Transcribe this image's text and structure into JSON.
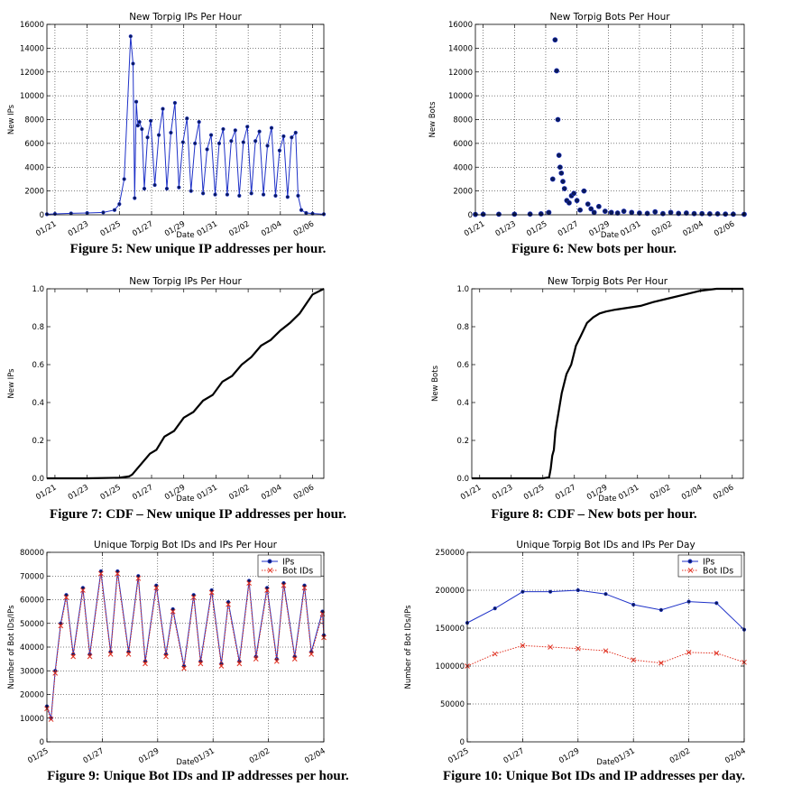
{
  "charts": [
    {
      "title": "New Torpig IPs Per Hour",
      "caption": "Figure 5: New unique IP addresses per hour.",
      "xlabel": "Date",
      "ylabel": "New IPs"
    },
    {
      "title": "New Torpig Bots Per Hour",
      "caption": "Figure 6: New bots per hour.",
      "xlabel": "Date",
      "ylabel": "New Bots"
    },
    {
      "title": "New Torpig IPs Per Hour",
      "caption": "Figure 7: CDF – New unique IP addresses per hour.",
      "xlabel": "Date",
      "ylabel": "New IPs"
    },
    {
      "title": "New Torpig Bots Per Hour",
      "caption": "Figure 8: CDF – New bots per hour.",
      "xlabel": "Date",
      "ylabel": "New Bots"
    },
    {
      "title": "Unique Torpig Bot IDs and IPs Per Hour",
      "caption": "Figure 9: Unique Bot IDs and IP addresses per hour.",
      "xlabel": "Date",
      "ylabel": "Number of Bot IDs/IPs"
    },
    {
      "title": "Unique Torpig Bot IDs and IPs Per Day",
      "caption": "Figure 10: Unique Bot IDs and IP addresses per day.",
      "xlabel": "Date",
      "ylabel": "Number of Bot IDs/IPs"
    }
  ],
  "chart_data": [
    {
      "type": "line",
      "title": "New Torpig IPs Per Hour",
      "xlabel": "Date",
      "ylabel": "New IPs",
      "x_ticks": [
        "01/21",
        "01/23",
        "01/25",
        "01/27",
        "01/29",
        "01/31",
        "02/02",
        "02/04",
        "02/06"
      ],
      "y_ticks": [
        0,
        2000,
        4000,
        6000,
        8000,
        10000,
        12000,
        14000,
        16000
      ],
      "xlim": [
        -0.5,
        16.7
      ],
      "ylim": [
        0,
        16000
      ],
      "grid": true,
      "color": "#1f32c8",
      "marker": "circle",
      "series": [
        {
          "name": "",
          "x": [
            -0.5,
            0,
            1,
            2,
            3,
            3.7,
            4,
            4.3,
            4.7,
            4.85,
            4.95,
            5.05,
            5.15,
            5.25,
            5.4,
            5.55,
            5.75,
            5.95,
            6.2,
            6.45,
            6.7,
            6.95,
            7.2,
            7.45,
            7.7,
            7.95,
            8.2,
            8.45,
            8.7,
            8.95,
            9.2,
            9.45,
            9.7,
            9.95,
            10.2,
            10.45,
            10.7,
            10.95,
            11.2,
            11.45,
            11.7,
            11.95,
            12.2,
            12.45,
            12.7,
            12.95,
            13.2,
            13.45,
            13.7,
            13.95,
            14.2,
            14.45,
            14.7,
            14.95,
            15.1,
            15.3,
            15.6,
            16,
            16.7
          ],
          "y": [
            50,
            80,
            120,
            150,
            200,
            400,
            900,
            3000,
            15000,
            12700,
            1400,
            9500,
            7500,
            7800,
            7200,
            2200,
            6500,
            7900,
            2500,
            6700,
            8900,
            2200,
            6900,
            9400,
            2300,
            6100,
            8100,
            2000,
            6000,
            7800,
            1800,
            5500,
            6700,
            1700,
            6000,
            7200,
            1700,
            6200,
            7100,
            1600,
            6100,
            7400,
            1800,
            6200,
            7000,
            1700,
            5800,
            7300,
            1600,
            5400,
            6600,
            1500,
            6500,
            6900,
            1600,
            400,
            150,
            100,
            50
          ]
        }
      ]
    },
    {
      "type": "scatter",
      "title": "New Torpig Bots Per Hour",
      "xlabel": "Date",
      "ylabel": "New Bots",
      "x_ticks": [
        "01/21",
        "01/23",
        "01/25",
        "01/27",
        "01/29",
        "01/31",
        "02/02",
        "02/04",
        "02/06"
      ],
      "y_ticks": [
        0,
        2000,
        4000,
        6000,
        8000,
        10000,
        12000,
        14000,
        16000
      ],
      "xlim": [
        -0.5,
        16.7
      ],
      "ylim": [
        0,
        16000
      ],
      "grid": true,
      "color": "#1f32c8",
      "marker": "circle",
      "series": [
        {
          "name": "",
          "x": [
            -0.5,
            0,
            1,
            2,
            3,
            3.7,
            4.2,
            4.45,
            4.6,
            4.7,
            4.78,
            4.85,
            4.92,
            5.0,
            5.1,
            5.2,
            5.35,
            5.5,
            5.65,
            5.8,
            6.0,
            6.2,
            6.45,
            6.7,
            6.9,
            7.1,
            7.4,
            7.8,
            8.2,
            8.6,
            9.0,
            9.5,
            10.0,
            10.5,
            11.0,
            11.5,
            12.0,
            12.5,
            13.0,
            13.5,
            14.0,
            14.5,
            15.0,
            15.5,
            16.0,
            16.7
          ],
          "y": [
            30,
            40,
            50,
            50,
            60,
            80,
            200,
            3000,
            14700,
            12100,
            8000,
            5000,
            4000,
            3500,
            2800,
            2200,
            1200,
            1000,
            1600,
            1800,
            1200,
            400,
            2000,
            900,
            500,
            200,
            700,
            300,
            200,
            150,
            300,
            200,
            150,
            120,
            250,
            100,
            200,
            120,
            150,
            100,
            100,
            80,
            80,
            60,
            50,
            40
          ]
        }
      ]
    },
    {
      "type": "line",
      "title": "New Torpig IPs Per Hour",
      "xlabel": "Date",
      "ylabel": "New IPs",
      "x_ticks": [
        "01/21",
        "01/23",
        "01/25",
        "01/27",
        "01/29",
        "01/31",
        "02/02",
        "02/04",
        "02/06"
      ],
      "y_ticks": [
        0.0,
        0.2,
        0.4,
        0.6,
        0.8,
        1.0
      ],
      "xlim": [
        -0.5,
        16.7
      ],
      "ylim": [
        0,
        1
      ],
      "grid": false,
      "color": "#000000",
      "series": [
        {
          "name": "",
          "x": [
            -0.5,
            0,
            2,
            4,
            4.6,
            4.8,
            5.0,
            5.4,
            5.9,
            6.3,
            6.8,
            7.4,
            8.0,
            8.6,
            9.2,
            9.8,
            10.4,
            11.0,
            11.6,
            12.2,
            12.8,
            13.4,
            14.0,
            14.6,
            15.2,
            15.6,
            16.0,
            16.7
          ],
          "y": [
            0,
            0,
            0,
            0.003,
            0.01,
            0.02,
            0.04,
            0.08,
            0.13,
            0.15,
            0.22,
            0.25,
            0.32,
            0.35,
            0.41,
            0.44,
            0.51,
            0.54,
            0.6,
            0.64,
            0.7,
            0.73,
            0.78,
            0.82,
            0.87,
            0.92,
            0.97,
            1.0
          ]
        }
      ]
    },
    {
      "type": "line",
      "title": "New Torpig Bots Per Hour",
      "xlabel": "Date",
      "ylabel": "New Bots",
      "x_ticks": [
        "01/21",
        "01/23",
        "01/25",
        "01/27",
        "01/29",
        "01/31",
        "02/02",
        "02/04",
        "02/06"
      ],
      "y_ticks": [
        0.0,
        0.2,
        0.4,
        0.6,
        0.8,
        1.0
      ],
      "xlim": [
        -0.5,
        16.7
      ],
      "ylim": [
        0,
        1
      ],
      "grid": false,
      "color": "#000000",
      "series": [
        {
          "name": "",
          "x": [
            -0.5,
            0,
            2,
            4,
            4.4,
            4.5,
            4.6,
            4.7,
            4.8,
            5.0,
            5.2,
            5.5,
            5.8,
            6.1,
            6.4,
            6.8,
            7.2,
            7.6,
            8.0,
            8.6,
            9.4,
            10.2,
            11,
            12,
            13,
            14,
            15,
            15.5,
            16.7
          ],
          "y": [
            0,
            0,
            0,
            0,
            0.005,
            0.05,
            0.12,
            0.15,
            0.25,
            0.35,
            0.45,
            0.55,
            0.6,
            0.7,
            0.75,
            0.82,
            0.85,
            0.87,
            0.88,
            0.89,
            0.9,
            0.91,
            0.93,
            0.95,
            0.97,
            0.99,
            1.0,
            1.0,
            1.0
          ]
        }
      ]
    },
    {
      "type": "line",
      "title": "Unique Torpig Bot IDs and IPs Per Hour",
      "xlabel": "Date",
      "ylabel": "Number of Bot IDs/IPs",
      "x_ticks": [
        "01/25",
        "01/27",
        "01/29",
        "01/31",
        "02/02",
        "02/04"
      ],
      "y_ticks": [
        0,
        10000,
        20000,
        30000,
        40000,
        50000,
        60000,
        70000,
        80000
      ],
      "xlim": [
        0,
        10
      ],
      "ylim": [
        0,
        80000
      ],
      "grid": true,
      "legend": "top-right",
      "series": [
        {
          "name": "IPs",
          "color": "#1f32c8",
          "marker": "circle",
          "x": [
            0,
            0.15,
            0.3,
            0.5,
            0.7,
            0.95,
            1.3,
            1.55,
            1.95,
            2.3,
            2.55,
            2.95,
            3.3,
            3.55,
            3.95,
            4.3,
            4.55,
            4.95,
            5.3,
            5.55,
            5.95,
            6.3,
            6.55,
            6.95,
            7.3,
            7.55,
            7.95,
            8.3,
            8.55,
            8.95,
            9.3,
            9.55,
            9.95,
            10
          ],
          "y": [
            15000,
            10000,
            30000,
            50000,
            62000,
            37000,
            65000,
            37000,
            72000,
            38000,
            72000,
            38000,
            70000,
            34000,
            66000,
            37000,
            56000,
            32000,
            62000,
            34000,
            64000,
            33000,
            59000,
            34000,
            68000,
            36000,
            65000,
            35000,
            67000,
            36000,
            66000,
            38000,
            55000,
            45000
          ]
        },
        {
          "name": "Bot IDs",
          "color": "#e03020",
          "marker": "x",
          "x": [
            0,
            0.15,
            0.3,
            0.5,
            0.7,
            0.95,
            1.3,
            1.55,
            1.95,
            2.3,
            2.55,
            2.95,
            3.3,
            3.55,
            3.95,
            4.3,
            4.55,
            4.95,
            5.3,
            5.55,
            5.95,
            6.3,
            6.55,
            6.95,
            7.3,
            7.55,
            7.95,
            8.3,
            8.55,
            8.95,
            9.3,
            9.55,
            9.95,
            10
          ],
          "y": [
            14000,
            9500,
            29000,
            49000,
            61000,
            36000,
            64000,
            36000,
            71000,
            37000,
            71000,
            37000,
            69000,
            33000,
            65000,
            36000,
            55000,
            31000,
            61000,
            33000,
            63000,
            32000,
            58000,
            33000,
            67000,
            35000,
            64000,
            34000,
            66000,
            35000,
            65000,
            37000,
            54000,
            44000
          ]
        }
      ]
    },
    {
      "type": "line",
      "title": "Unique Torpig Bot IDs and IPs Per Day",
      "xlabel": "Date",
      "ylabel": "Number of Bot IDs/IPs",
      "x_ticks": [
        "01/25",
        "01/27",
        "01/29",
        "01/31",
        "02/02",
        "02/04"
      ],
      "y_ticks": [
        0,
        50000,
        100000,
        150000,
        200000,
        250000
      ],
      "xlim": [
        0,
        10
      ],
      "ylim": [
        0,
        250000
      ],
      "grid": true,
      "legend": "top-right",
      "series": [
        {
          "name": "IPs",
          "color": "#1f32c8",
          "marker": "circle",
          "x": [
            0,
            1,
            2,
            3,
            4,
            5,
            6,
            7,
            8,
            9,
            10
          ],
          "y": [
            157000,
            176000,
            198000,
            198000,
            200000,
            195000,
            181000,
            174000,
            185000,
            183000,
            148000
          ]
        },
        {
          "name": "Bot IDs",
          "color": "#e03020",
          "marker": "x",
          "x": [
            0,
            1,
            2,
            3,
            4,
            5,
            6,
            7,
            8,
            9,
            10
          ],
          "y": [
            100000,
            116000,
            127000,
            125000,
            123000,
            120000,
            108000,
            104000,
            118000,
            117000,
            105000
          ]
        }
      ]
    }
  ]
}
